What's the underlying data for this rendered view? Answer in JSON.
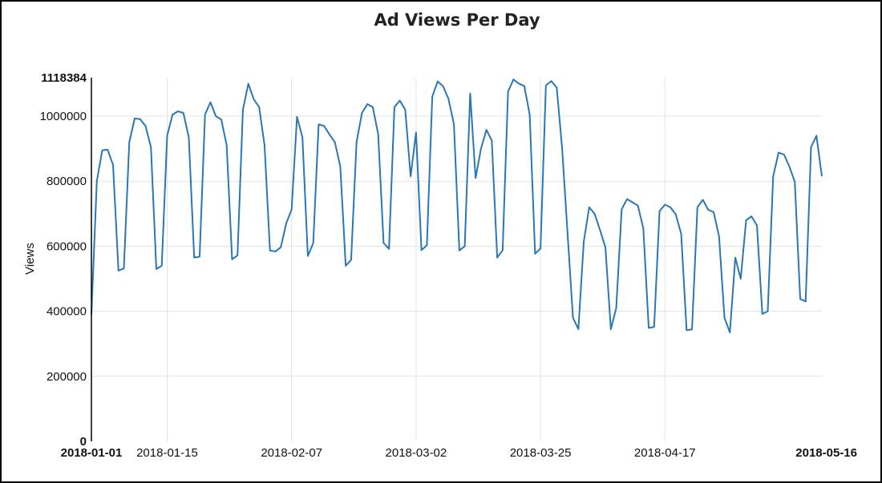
{
  "chart_data": {
    "type": "line",
    "title": "Ad Views Per Day",
    "xlabel": "",
    "ylabel": "Views",
    "ylim": [
      0,
      1118384
    ],
    "xlim": [
      "2018-01-01",
      "2018-05-16"
    ],
    "grid": true,
    "y_ticks": [
      {
        "value": 0,
        "label": "0",
        "bold": true
      },
      {
        "value": 200000,
        "label": "200000",
        "bold": false
      },
      {
        "value": 400000,
        "label": "400000",
        "bold": false
      },
      {
        "value": 600000,
        "label": "600000",
        "bold": false
      },
      {
        "value": 800000,
        "label": "800000",
        "bold": false
      },
      {
        "value": 1000000,
        "label": "1000000",
        "bold": false
      },
      {
        "value": 1118384,
        "label": "1118384",
        "bold": true
      }
    ],
    "x_ticks": [
      {
        "value": "2018-01-01",
        "label": "2018-01-01",
        "bold": true
      },
      {
        "value": "2018-01-15",
        "label": "2018-01-15",
        "bold": false
      },
      {
        "value": "2018-02-07",
        "label": "2018-02-07",
        "bold": false
      },
      {
        "value": "2018-03-02",
        "label": "2018-03-02",
        "bold": false
      },
      {
        "value": "2018-03-25",
        "label": "2018-03-25",
        "bold": false
      },
      {
        "value": "2018-04-17",
        "label": "2018-04-17",
        "bold": false
      },
      {
        "value": "2018-05-16",
        "label": "2018-05-16",
        "bold": true
      }
    ],
    "series": [
      {
        "color": "#2a77b4",
        "x": [
          "2018-01-01",
          "2018-01-02",
          "2018-01-03",
          "2018-01-04",
          "2018-01-05",
          "2018-01-06",
          "2018-01-07",
          "2018-01-08",
          "2018-01-09",
          "2018-01-10",
          "2018-01-11",
          "2018-01-12",
          "2018-01-13",
          "2018-01-14",
          "2018-01-15",
          "2018-01-16",
          "2018-01-17",
          "2018-01-18",
          "2018-01-19",
          "2018-01-20",
          "2018-01-21",
          "2018-01-22",
          "2018-01-23",
          "2018-01-24",
          "2018-01-25",
          "2018-01-26",
          "2018-01-27",
          "2018-01-28",
          "2018-01-29",
          "2018-01-30",
          "2018-01-31",
          "2018-02-01",
          "2018-02-02",
          "2018-02-03",
          "2018-02-04",
          "2018-02-05",
          "2018-02-06",
          "2018-02-07",
          "2018-02-08",
          "2018-02-09",
          "2018-02-10",
          "2018-02-11",
          "2018-02-12",
          "2018-02-13",
          "2018-02-14",
          "2018-02-15",
          "2018-02-16",
          "2018-02-17",
          "2018-02-18",
          "2018-02-19",
          "2018-02-20",
          "2018-02-21",
          "2018-02-22",
          "2018-02-23",
          "2018-02-24",
          "2018-02-25",
          "2018-02-26",
          "2018-02-27",
          "2018-02-28",
          "2018-03-01",
          "2018-03-02",
          "2018-03-03",
          "2018-03-04",
          "2018-03-05",
          "2018-03-06",
          "2018-03-07",
          "2018-03-08",
          "2018-03-09",
          "2018-03-10",
          "2018-03-11",
          "2018-03-12",
          "2018-03-13",
          "2018-03-14",
          "2018-03-15",
          "2018-03-16",
          "2018-03-17",
          "2018-03-18",
          "2018-03-19",
          "2018-03-20",
          "2018-03-21",
          "2018-03-22",
          "2018-03-23",
          "2018-03-24",
          "2018-03-25",
          "2018-03-26",
          "2018-03-27",
          "2018-03-28",
          "2018-03-29",
          "2018-03-30",
          "2018-03-31",
          "2018-04-01",
          "2018-04-02",
          "2018-04-03",
          "2018-04-04",
          "2018-04-05",
          "2018-04-06",
          "2018-04-07",
          "2018-04-08",
          "2018-04-09",
          "2018-04-10",
          "2018-04-11",
          "2018-04-12",
          "2018-04-13",
          "2018-04-14",
          "2018-04-15",
          "2018-04-16",
          "2018-04-17",
          "2018-04-18",
          "2018-04-19",
          "2018-04-20",
          "2018-04-21",
          "2018-04-22",
          "2018-04-23",
          "2018-04-24",
          "2018-04-25",
          "2018-04-26",
          "2018-04-27",
          "2018-04-28",
          "2018-04-29",
          "2018-04-30",
          "2018-05-01",
          "2018-05-02",
          "2018-05-03",
          "2018-05-04",
          "2018-05-05",
          "2018-05-06",
          "2018-05-07",
          "2018-05-08",
          "2018-05-09",
          "2018-05-10",
          "2018-05-11",
          "2018-05-12",
          "2018-05-13",
          "2018-05-14",
          "2018-05-15",
          "2018-05-16"
        ],
        "values": [
          390000,
          800000,
          895000,
          897000,
          850000,
          525000,
          532000,
          920000,
          993000,
          991000,
          970000,
          905000,
          530000,
          540000,
          940000,
          1005000,
          1015000,
          1010000,
          935000,
          565000,
          568000,
          1005000,
          1043000,
          1000000,
          990000,
          910000,
          560000,
          572000,
          1020000,
          1100000,
          1052000,
          1028000,
          910000,
          587000,
          584000,
          597000,
          670000,
          713000,
          998000,
          935000,
          570000,
          610000,
          975000,
          970000,
          944000,
          920000,
          845000,
          540000,
          558000,
          920000,
          1010000,
          1037000,
          1028000,
          945000,
          610000,
          592000,
          1028000,
          1048000,
          1020000,
          815000,
          950000,
          588000,
          603000,
          1060000,
          1107000,
          1092000,
          1053000,
          975000,
          587000,
          600000,
          1070000,
          810000,
          900000,
          958000,
          925000,
          565000,
          588000,
          1075000,
          1113000,
          1100000,
          1093000,
          1005000,
          577000,
          593000,
          1095000,
          1108000,
          1088000,
          900000,
          640000,
          380000,
          345000,
          615000,
          720000,
          700000,
          650000,
          596000,
          345000,
          410000,
          714000,
          745000,
          735000,
          725000,
          655000,
          349000,
          352000,
          708000,
          728000,
          720000,
          698000,
          638000,
          342000,
          344000,
          720000,
          743000,
          712000,
          705000,
          630000,
          380000,
          335000,
          565000,
          500000,
          680000,
          692000,
          664000,
          392000,
          400000,
          815000,
          888000,
          882000,
          845000,
          798000,
          438000,
          430000,
          905000,
          940000,
          815000
        ]
      }
    ]
  }
}
